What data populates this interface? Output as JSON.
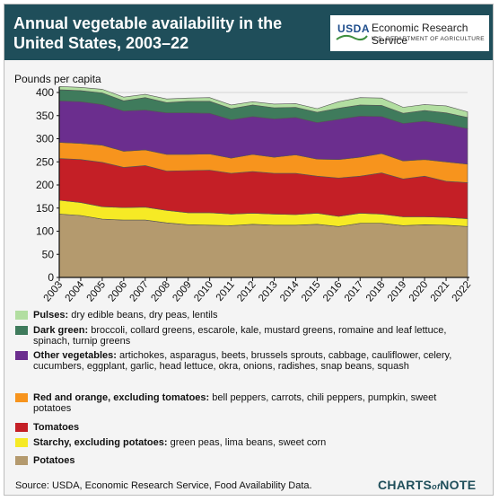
{
  "header": {
    "title": "Annual vegetable availability in the United States, 2003–22",
    "agency_logo": "USDA",
    "agency_name": "Economic Research Service",
    "agency_sub": "U.S. DEPARTMENT OF AGRICULTURE"
  },
  "source": "Source: USDA, Economic Research Service, Food Availability Data.",
  "footer_brand": {
    "main": "CHARTS",
    "of": "of",
    "note": "NOTE"
  },
  "legend_items": [
    {
      "key": "pulses",
      "bold": "Pulses:",
      "desc": " dry edible beans, dry peas, lentils"
    },
    {
      "key": "dark_green",
      "bold": "Dark green:",
      "desc": " broccoli, collard greens, escarole, kale, mustard greens, romaine and leaf lettuce, spinach, turnip greens"
    },
    {
      "key": "other",
      "bold": "Other vegetables:",
      "desc": " artichokes, asparagus, beets,  brussels sprouts, cabbage, cauliflower, celery, cucumbers, eggplant, garlic, head lettuce, okra, onions, radishes, snap beans, squash"
    },
    {
      "key": "red_orange",
      "bold": "Red and orange, excluding tomatoes:",
      "desc": " bell peppers, carrots, chili peppers, pumpkin, sweet potatoes"
    },
    {
      "key": "tomatoes",
      "bold": "Tomatoes",
      "desc": ""
    },
    {
      "key": "starchy",
      "bold": "Starchy, excluding potatoes:",
      "desc": " green peas, lima beans, sweet corn"
    },
    {
      "key": "potatoes",
      "bold": "Potatoes",
      "desc": ""
    }
  ],
  "chart_data": {
    "type": "area",
    "stacked": true,
    "ylabel": "Pounds per capita",
    "ylim": [
      0,
      400
    ],
    "yticks": [
      0,
      50,
      100,
      150,
      200,
      250,
      300,
      350,
      400
    ],
    "x": [
      "2003",
      "2004",
      "2005",
      "2006",
      "2007",
      "2008",
      "2009",
      "2010",
      "2011",
      "2012",
      "2013",
      "2014",
      "2015",
      "2016",
      "2017",
      "2018",
      "2019",
      "2020",
      "2021",
      "2022"
    ],
    "grid": true,
    "series": [
      {
        "name": "Potatoes",
        "color": "#b49a6e",
        "values": [
          137,
          134,
          126,
          124,
          124,
          118,
          114,
          113,
          112,
          115,
          113,
          113,
          115,
          110,
          117,
          117,
          112,
          114,
          113,
          110
        ]
      },
      {
        "name": "Starchy, excluding potatoes",
        "color": "#f6ea25",
        "values": [
          30,
          28,
          27,
          27,
          28,
          27,
          26,
          27,
          25,
          24,
          24,
          23,
          24,
          22,
          22,
          20,
          19,
          17,
          17,
          17
        ]
      },
      {
        "name": "Tomatoes",
        "color": "#c41f26",
        "values": [
          90,
          93,
          96,
          87,
          90,
          85,
          91,
          92,
          88,
          90,
          88,
          89,
          80,
          83,
          80,
          89,
          82,
          88,
          78,
          78
        ]
      },
      {
        "name": "Red and orange, excluding tomatoes",
        "color": "#f7941d",
        "values": [
          35,
          35,
          37,
          35,
          34,
          36,
          35,
          35,
          33,
          37,
          35,
          40,
          37,
          40,
          41,
          42,
          39,
          36,
          42,
          40
        ]
      },
      {
        "name": "Other vegetables",
        "color": "#6b2e8e",
        "values": [
          90,
          90,
          88,
          87,
          86,
          90,
          90,
          88,
          83,
          82,
          83,
          81,
          79,
          87,
          89,
          80,
          81,
          83,
          81,
          77
        ]
      },
      {
        "name": "Dark green",
        "color": "#3f7b5c",
        "values": [
          24,
          24,
          25,
          22,
          27,
          22,
          25,
          26,
          24,
          25,
          24,
          22,
          22,
          24,
          24,
          24,
          22,
          23,
          25,
          24
        ]
      },
      {
        "name": "Pulses",
        "color": "#b2dea1",
        "values": [
          7,
          7,
          8,
          8,
          7,
          8,
          7,
          8,
          8,
          7,
          8,
          8,
          8,
          14,
          16,
          16,
          13,
          13,
          15,
          12
        ]
      }
    ]
  }
}
